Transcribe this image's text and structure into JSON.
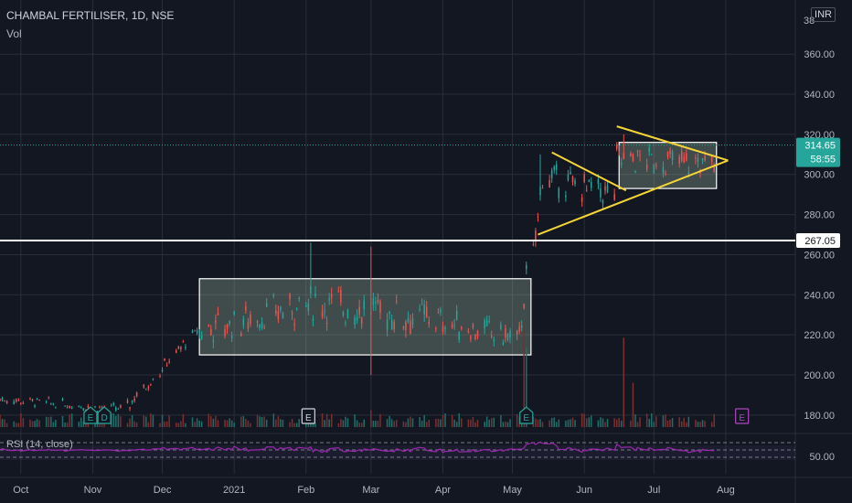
{
  "header": {
    "symbol": "CHAMBAL FERTILISER, 1D, NSE",
    "volume_label": "Vol",
    "currency": "INR",
    "rsi_label": "RSI (14, close)"
  },
  "colors": {
    "background": "#131722",
    "grid": "#2a2e39",
    "up": "#26a69a",
    "down": "#ef5350",
    "up_vol": "#1f6e68",
    "down_vol": "#7a2f31",
    "rsi": "#9c27b0",
    "trendline": "#f5d536",
    "support": "#ffffff",
    "last_price_tag": "#26a69a"
  },
  "chart_data": {
    "type": "candlestick",
    "y_axis": {
      "ticks": [
        180,
        200,
        220,
        240,
        260,
        280,
        300,
        320,
        340,
        360
      ],
      "range": [
        174,
        387
      ],
      "top_partial_label": "38"
    },
    "x_axis": {
      "labels": [
        "Oct",
        "Nov",
        "Dec",
        "2021",
        "Feb",
        "Mar",
        "Apr",
        "May",
        "Jun",
        "Jul",
        "Aug"
      ],
      "label_dates": [
        "2020-10-01",
        "2020-11-01",
        "2020-12-01",
        "2021-01-01",
        "2021-02-01",
        "2021-03-01",
        "2021-04-01",
        "2021-05-01",
        "2021-06-01",
        "2021-07-01",
        "2021-08-01"
      ],
      "range": [
        "2020-09-22",
        "2021-08-31"
      ]
    },
    "price_series": {
      "name": "CHAMBAL FERTILISER",
      "segments": [
        {
          "from": "2020-09-22",
          "to": "2020-11-15",
          "start": 188,
          "end": 183,
          "noise": 2
        },
        {
          "from": "2020-11-16",
          "to": "2020-12-16",
          "start": 184,
          "end": 222,
          "noise": 3
        },
        {
          "from": "2020-12-17",
          "to": "2021-02-04",
          "start": 222,
          "end": 236,
          "noise": 7
        },
        {
          "from": "2021-02-05",
          "to": "2021-03-25",
          "start": 236,
          "end": 228,
          "noise": 8
        },
        {
          "from": "2021-03-26",
          "to": "2021-05-03",
          "start": 228,
          "end": 218,
          "noise": 6
        },
        {
          "from": "2021-05-04",
          "to": "2021-05-14",
          "start": 218,
          "end": 300,
          "noise": 6
        },
        {
          "from": "2021-05-15",
          "to": "2021-06-14",
          "start": 298,
          "end": 290,
          "noise": 6
        },
        {
          "from": "2021-06-15",
          "to": "2021-07-27",
          "start": 308,
          "end": 305,
          "noise": 6
        }
      ],
      "notable_highs": [
        {
          "date": "2021-02-03",
          "high": 266
        },
        {
          "date": "2021-03-01",
          "high": 264
        },
        {
          "date": "2021-02-28",
          "low": 200
        },
        {
          "date": "2021-05-13",
          "high": 310
        },
        {
          "date": "2021-06-18",
          "high": 320
        }
      ]
    },
    "last_price": 314.65,
    "countdown": "58:55",
    "support_line": {
      "price": 267.05,
      "label": "267.05"
    },
    "rectangles": [
      {
        "from": "2020-12-17",
        "to": "2021-05-09",
        "top": 248,
        "bottom": 210
      },
      {
        "from": "2021-06-16",
        "to": "2021-07-28",
        "top": 316,
        "bottom": 293
      }
    ],
    "trendlines": [
      {
        "from_date": "2021-05-12",
        "from_price": 270,
        "to_date": "2021-08-02",
        "to_price": 307
      },
      {
        "from_date": "2021-05-18",
        "from_price": 311,
        "to_date": "2021-06-19",
        "to_price": 292
      },
      {
        "from_date": "2021-06-15",
        "from_price": 324,
        "to_date": "2021-08-02",
        "to_price": 307
      }
    ],
    "event_markers": [
      {
        "date": "2020-10-31",
        "letter": "E",
        "style": "teal"
      },
      {
        "date": "2020-11-06",
        "letter": "D",
        "style": "teal"
      },
      {
        "date": "2021-02-02",
        "letter": "E",
        "style": "white"
      },
      {
        "date": "2021-05-07",
        "letter": "E",
        "style": "teal"
      },
      {
        "date": "2021-08-08",
        "letter": "E",
        "style": "purple"
      }
    ],
    "volume": {
      "base": 6,
      "spikes": [
        {
          "date": "2021-05-06",
          "value": 100
        },
        {
          "date": "2021-05-07",
          "value": 75
        },
        {
          "date": "2021-06-18",
          "value": 85
        },
        {
          "date": "2021-06-22",
          "value": 42
        },
        {
          "date": "2021-02-04",
          "value": 18
        },
        {
          "date": "2021-03-01",
          "value": 16
        }
      ]
    },
    "rsi": {
      "label": "RSI (14, close)",
      "tick": "50.00",
      "bands": [
        70,
        50,
        30
      ]
    },
    "grid": true
  }
}
